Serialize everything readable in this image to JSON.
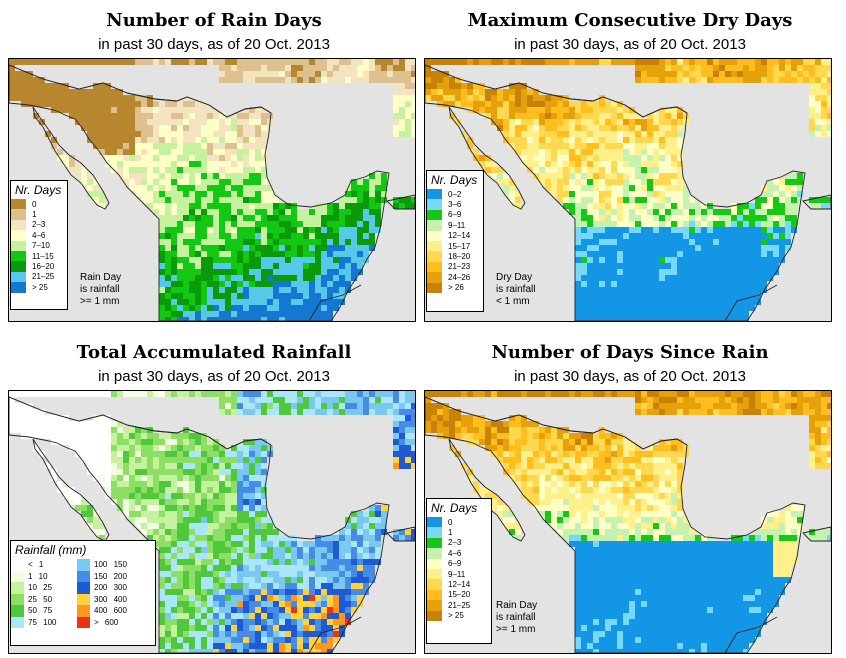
{
  "panels": [
    {
      "title": "Number of Rain Days",
      "subtitle": "in past 30 days, as of  20 Oct. 2013",
      "legend_title": "Nr. Days",
      "legend": [
        {
          "label": "0",
          "color": "#b8862e"
        },
        {
          "label": "1",
          "color": "#dcc08e"
        },
        {
          "label": "2–3",
          "color": "#f3e3c1"
        },
        {
          "label": "4–6",
          "color": "#ffffc6"
        },
        {
          "label": "7–10",
          "color": "#c6f2a0"
        },
        {
          "label": "11–15",
          "color": "#12c812"
        },
        {
          "label": "16–20",
          "color": "#0a9a0a"
        },
        {
          "label": "21–25",
          "color": "#56c8ea"
        },
        {
          "label": "> 25",
          "color": "#1478d2"
        }
      ],
      "note": [
        "Rain Day",
        "is rainfall",
        ">= 1 mm"
      ]
    },
    {
      "title": "Maximum Consecutive Dry Days",
      "subtitle": "in past 30 days, as of  20 Oct. 2013",
      "legend_title": "Nr. Days",
      "legend": [
        {
          "label": "0–2",
          "color": "#1496e6"
        },
        {
          "label": "3–6",
          "color": "#78d8f8"
        },
        {
          "label": "6–9",
          "color": "#14c814"
        },
        {
          "label": "9–11",
          "color": "#c6f2b0"
        },
        {
          "label": "12–14",
          "color": "#ffffc6"
        },
        {
          "label": "15–17",
          "color": "#fff08c"
        },
        {
          "label": "18–20",
          "color": "#ffd850"
        },
        {
          "label": "21–23",
          "color": "#ffbe1e"
        },
        {
          "label": "24–26",
          "color": "#e6a00a"
        },
        {
          "label": "> 26",
          "color": "#c8820a"
        }
      ],
      "note": [
        "Dry Day",
        "is rainfall",
        "< 1 mm"
      ]
    },
    {
      "title": "Total Accumulated Rainfall",
      "subtitle": "in past 30 days, as of  20 Oct. 2013",
      "legend_title": "Rainfall (mm)",
      "legend": [
        {
          "label": "< 1",
          "color": "#ffffff"
        },
        {
          "label": "1  10",
          "color": "#f2ffe0"
        },
        {
          "label": "10  25",
          "color": "#c6f2a0"
        },
        {
          "label": "25  50",
          "color": "#8cde64"
        },
        {
          "label": "50  75",
          "color": "#50c83c"
        },
        {
          "label": "75  100",
          "color": "#aae6f8"
        },
        {
          "label": "100  150",
          "color": "#78c8f0"
        },
        {
          "label": "150  200",
          "color": "#468ce6"
        },
        {
          "label": "200  300",
          "color": "#1e5ad2"
        },
        {
          "label": "300  400",
          "color": "#ffd23c"
        },
        {
          "label": "400  600",
          "color": "#ff961e"
        },
        {
          "label": "> 600",
          "color": "#f03214"
        }
      ],
      "note": []
    },
    {
      "title": "Number of Days Since Rain",
      "subtitle": "in past 30 days, as of  20 Oct. 2013",
      "legend_title": "Nr. Days",
      "legend": [
        {
          "label": "0",
          "color": "#1496e6"
        },
        {
          "label": "1",
          "color": "#78d8f8"
        },
        {
          "label": "2–3",
          "color": "#14c814"
        },
        {
          "label": "4–6",
          "color": "#c6f2b0"
        },
        {
          "label": "6–9",
          "color": "#ffffc6"
        },
        {
          "label": "9–11",
          "color": "#fff08c"
        },
        {
          "label": "12–14",
          "color": "#ffd850"
        },
        {
          "label": "15–20",
          "color": "#ffbe1e"
        },
        {
          "label": "21–25",
          "color": "#e6a00a"
        },
        {
          "label": "> 25",
          "color": "#c8820a"
        }
      ],
      "note": [
        "Rain Day",
        "is rainfall",
        ">= 1 mm"
      ]
    }
  ]
}
